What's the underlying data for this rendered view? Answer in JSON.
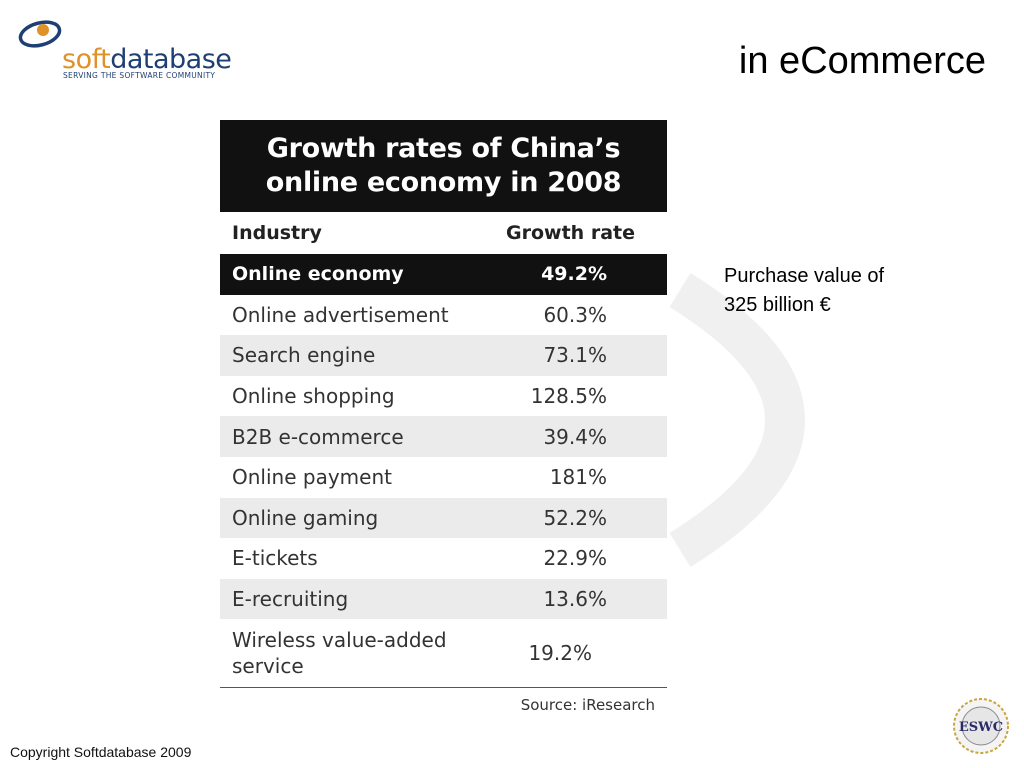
{
  "logo": {
    "text_soft": "soft",
    "text_database": "database",
    "tagline": "SERVING THE SOFTWARE COMMUNITY",
    "icon": "orbit-logo-icon",
    "colors": {
      "orange": "#e0922a",
      "navy": "#1e3f73"
    }
  },
  "slide": {
    "title": "in eCommerce",
    "note_line1": "Purchase value of",
    "note_line2": "325 billion €",
    "copyright": "Copyright Softdatabase 2009",
    "seal_text": "ESWC"
  },
  "table": {
    "title_line1": "Growth rates of China’s",
    "title_line2": "online economy in 2008",
    "col_industry": "Industry",
    "col_growth": "Growth rate",
    "rows": [
      {
        "industry": "Online economy",
        "growth": "49.2%"
      },
      {
        "industry": "Online advertisement",
        "growth": "60.3%"
      },
      {
        "industry": "Search engine",
        "growth": "73.1%"
      },
      {
        "industry": "Online shopping",
        "growth": "128.5%"
      },
      {
        "industry": "B2B e-commerce",
        "growth": "39.4%"
      },
      {
        "industry": "Online payment",
        "growth": "181%"
      },
      {
        "industry": "Online gaming",
        "growth": "52.2%"
      },
      {
        "industry": "E-tickets",
        "growth": "22.9%"
      },
      {
        "industry": "E-recruiting",
        "growth": "13.6%"
      },
      {
        "industry": "Wireless value-added service",
        "growth": "19.2%"
      }
    ],
    "source": "Source: iResearch"
  }
}
